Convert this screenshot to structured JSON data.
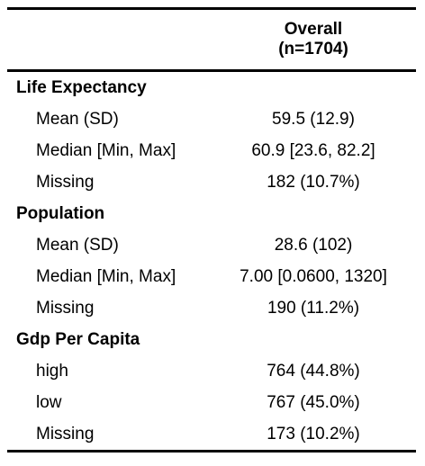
{
  "table": {
    "header": {
      "overall_title": "Overall",
      "overall_n": "(n=1704)"
    },
    "groups": [
      {
        "label": "Life Expectancy",
        "rows": [
          {
            "label": "Mean (SD)",
            "value": "59.5 (12.9)"
          },
          {
            "label": "Median [Min, Max]",
            "value": "60.9 [23.6, 82.2]"
          },
          {
            "label": "Missing",
            "value": "182 (10.7%)"
          }
        ]
      },
      {
        "label": "Population",
        "rows": [
          {
            "label": "Mean (SD)",
            "value": "28.6 (102)"
          },
          {
            "label": "Median [Min, Max]",
            "value": "7.00 [0.0600, 1320]"
          },
          {
            "label": "Missing",
            "value": "190 (11.2%)"
          }
        ]
      },
      {
        "label": "Gdp Per Capita",
        "rows": [
          {
            "label": "high",
            "value": "764 (44.8%)"
          },
          {
            "label": "low",
            "value": "767 (45.0%)"
          },
          {
            "label": "Missing",
            "value": "173 (10.2%)"
          }
        ]
      }
    ]
  }
}
